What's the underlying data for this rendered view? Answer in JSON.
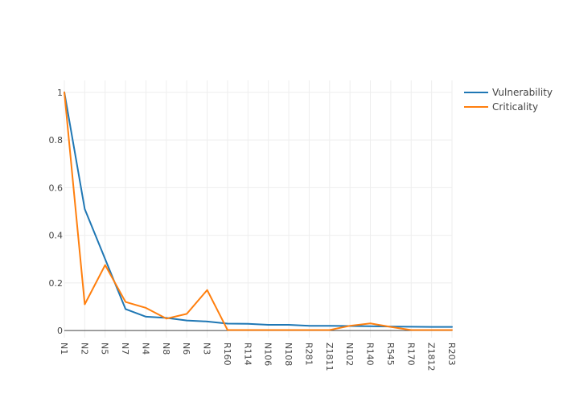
{
  "chart_data": {
    "type": "line",
    "categories": [
      "N1",
      "N2",
      "N5",
      "N7",
      "N4",
      "N8",
      "N6",
      "N3",
      "R160",
      "R114",
      "N106",
      "N108",
      "R281",
      "Z1811",
      "N102",
      "R140",
      "R545",
      "R170",
      "Z1812",
      "R203"
    ],
    "series": [
      {
        "name": "Vulnerability",
        "color": "#1f77b4",
        "values": [
          1.0,
          0.51,
          0.3,
          0.09,
          0.058,
          0.053,
          0.042,
          0.038,
          0.029,
          0.028,
          0.024,
          0.024,
          0.02,
          0.02,
          0.019,
          0.018,
          0.017,
          0.016,
          0.015,
          0.015
        ]
      },
      {
        "name": "Criticality",
        "color": "#ff7f0e",
        "values": [
          1.0,
          0.11,
          0.275,
          0.12,
          0.095,
          0.05,
          0.07,
          0.17,
          0.002,
          0.002,
          0.002,
          0.002,
          0.002,
          0.002,
          0.02,
          0.03,
          0.015,
          0.002,
          0.002,
          0.002
        ]
      }
    ],
    "yticks": [
      0,
      0.2,
      0.4,
      0.6,
      0.8,
      1
    ],
    "ytick_labels": [
      "0",
      "0.2",
      "0.4",
      "0.6",
      "0.8",
      "1"
    ],
    "ylim": [
      -0.03,
      1.05
    ],
    "grid": true,
    "legend_position": "top-right"
  }
}
